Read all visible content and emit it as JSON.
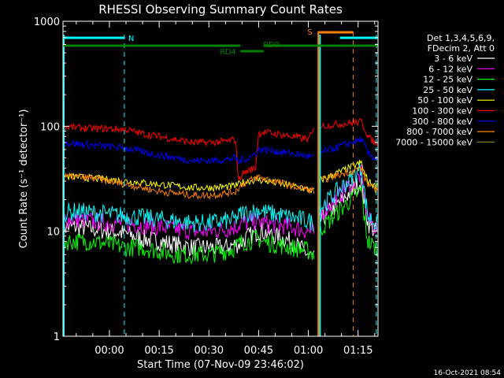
{
  "chart_data": {
    "type": "line",
    "title": "RHESSI Observing Summary Count Rates",
    "xlabel": "Start Time (07-Nov-09 23:46:02)",
    "ylabel": "Count Rate (s⁻¹ detector⁻¹)",
    "yscale": "log",
    "ylim": [
      1,
      1000
    ],
    "xlim_minutes": [
      -14,
      81
    ],
    "x_tick_labels": [
      "00:00",
      "00:15",
      "00:30",
      "00:45",
      "01:00",
      "01:15"
    ],
    "x_tick_minutes": [
      0,
      15,
      30,
      45,
      60,
      75
    ],
    "y_tick_labels": [
      "1",
      "10",
      "100",
      "1000"
    ],
    "y_tick_values": [
      1,
      10,
      100,
      1000
    ],
    "legend": {
      "placement": "right",
      "header": [
        "Det 1,3,4,5,6,9,",
        "FDecim 2, Att 0"
      ]
    },
    "timestamp": "16-Oct-2021 08:54",
    "annotations": {
      "night_label": "N",
      "saa_label": "S",
      "rd0_label": "RD0",
      "rd4_label": "RD4",
      "night_bar_color": "#00ffff",
      "saa_color": "#ff8000",
      "rd_bar_color": "#008000",
      "night_intervals": [
        [
          -14,
          4.5
        ],
        [
          69.5,
          81
        ]
      ],
      "night_end_markers": [
        4.5,
        80.5
      ],
      "night_start_markers": [
        63.5
      ],
      "saa_interval": [
        63,
        73.5
      ],
      "saa_end_marker": 73.5,
      "rd0_intervals": [
        [
          -14,
          39.5
        ],
        [
          46.5,
          81
        ]
      ],
      "rd4_interval": [
        39.5,
        46.5
      ]
    },
    "x_minutes": [
      -14,
      -10,
      -5,
      0,
      5,
      10,
      15,
      20,
      25,
      30,
      35,
      38,
      39,
      40,
      42,
      44,
      45,
      46,
      50,
      55,
      60,
      62,
      63,
      76,
      77,
      78,
      80,
      81
    ],
    "gap_after_minute": 62,
    "series": [
      {
        "name": "3 - 6 keV",
        "color": "#ffffff",
        "values": [
          11,
          11,
          10.5,
          10,
          9.5,
          8.5,
          8,
          7.5,
          7,
          7,
          7,
          7.5,
          7.5,
          8,
          9,
          9.5,
          10,
          10,
          9,
          8,
          6,
          5.5,
          12,
          30,
          18,
          12,
          10,
          10
        ]
      },
      {
        "name": "6 - 12 keV",
        "color": "#ff00ff",
        "values": [
          13,
          13,
          12.5,
          12,
          12,
          11.5,
          11,
          10.5,
          10,
          10,
          10.5,
          11,
          11.5,
          12,
          12,
          12.5,
          12.5,
          12,
          11.5,
          11,
          10,
          9.5,
          14,
          35,
          20,
          13,
          11,
          11
        ]
      },
      {
        "name": "12 - 25 keV",
        "color": "#00ff00",
        "values": [
          8,
          8,
          8,
          7.5,
          7,
          7,
          6.5,
          6,
          6,
          6,
          6.5,
          7,
          7.5,
          8,
          8,
          8.5,
          8.5,
          8,
          7.5,
          7,
          6.5,
          6,
          10,
          25,
          12,
          8,
          7,
          7
        ]
      },
      {
        "name": "25 - 50 keV",
        "color": "#00ffff",
        "values": [
          15,
          15.5,
          15,
          14.5,
          14,
          13.5,
          13,
          12.5,
          12,
          12,
          12.5,
          13,
          14,
          15,
          15,
          15.5,
          16,
          15.5,
          14.5,
          13.5,
          12.5,
          12,
          16,
          40,
          22,
          14,
          12,
          12
        ]
      },
      {
        "name": "50 - 100 keV",
        "color": "#ffff00",
        "values": [
          33,
          33,
          32,
          31,
          30,
          29,
          28,
          27,
          26,
          26,
          26.5,
          27,
          28,
          29,
          30,
          31,
          31,
          30.5,
          29,
          27,
          25,
          24,
          30,
          45,
          35,
          30,
          27,
          27
        ]
      },
      {
        "name": "100 - 300 keV",
        "color": "#ff0000",
        "values": [
          100,
          97,
          95,
          95,
          93,
          85,
          80,
          75,
          70,
          70,
          72,
          75,
          30,
          35,
          38,
          40,
          85,
          88,
          85,
          80,
          75,
          95,
          100,
          110,
          95,
          80,
          70,
          70
        ]
      },
      {
        "name": "300 - 800 keV",
        "color": "#0000ff",
        "values": [
          70,
          68,
          66,
          64,
          62,
          57,
          53,
          50,
          47,
          47,
          48,
          50,
          45,
          48,
          50,
          55,
          60,
          60,
          58,
          55,
          52,
          50,
          55,
          75,
          65,
          55,
          50,
          50
        ]
      },
      {
        "name": "800 - 7000 keV",
        "color": "#ff8000",
        "values": [
          33,
          33,
          32,
          30,
          28,
          26,
          24,
          23,
          22,
          22,
          23,
          24,
          26,
          28,
          30,
          32,
          33,
          32,
          30,
          27,
          25,
          24,
          30,
          40,
          32,
          28,
          25,
          25
        ]
      },
      {
        "name": "7000 - 15000 keV",
        "color": "#808000",
        "values": [
          null,
          null,
          null,
          null,
          null,
          null,
          null,
          null,
          null,
          null,
          null,
          null,
          null,
          null,
          null,
          null,
          null,
          null,
          null,
          null,
          null,
          null,
          null,
          null,
          null,
          null,
          null,
          null
        ]
      }
    ]
  }
}
